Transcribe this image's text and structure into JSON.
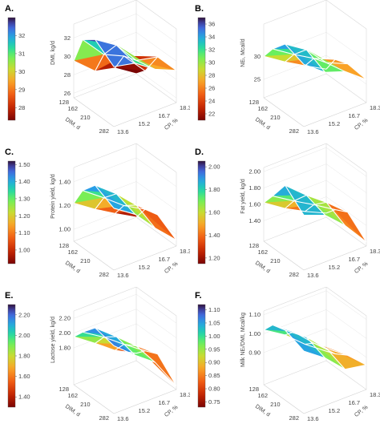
{
  "chart_data": [
    {
      "type": "surface",
      "panel_label": "A.",
      "zlabel": "DMI, kg/d",
      "xlabel": "DIM, d",
      "ylabel": "CP, %",
      "x": [
        128,
        162,
        210,
        282
      ],
      "y": [
        13.6,
        15.2,
        16.7,
        18.3
      ],
      "z": [
        [
          29.5,
          27.5,
          27.0,
          25.5
        ],
        [
          32.5,
          30.0,
          29.0,
          26.5
        ],
        [
          33.5,
          32.0,
          29.5,
          29.0
        ],
        [
          32.0,
          31.5,
          30.0,
          29.0
        ]
      ],
      "z_ticks": [
        26,
        28,
        30,
        32
      ],
      "colorbar": {
        "ticks": [
          28,
          29,
          30,
          31,
          32
        ],
        "min": 27.3,
        "max": 33
      }
    },
    {
      "type": "surface",
      "panel_label": "B.",
      "zlabel": "NEₗ, Mcal/d",
      "xlabel": "DIM, d",
      "ylabel": "CP, %",
      "x": [
        128,
        162,
        210,
        282
      ],
      "y": [
        13.6,
        15.2,
        16.7,
        18.3
      ],
      "z": [
        [
          30.0,
          27.0,
          24.5,
          22.0
        ],
        [
          33.0,
          30.0,
          27.5,
          25.5
        ],
        [
          36.0,
          33.0,
          28.5,
          26.5
        ],
        [
          34.5,
          31.0,
          29.5,
          26.0
        ]
      ],
      "z_ticks": [
        25,
        30
      ],
      "colorbar": {
        "ticks": [
          22,
          24,
          26,
          28,
          30,
          32,
          34,
          36
        ],
        "min": 21,
        "max": 37
      }
    },
    {
      "type": "surface",
      "panel_label": "C.",
      "zlabel": "Protein yield, kg/d",
      "xlabel": "DIM, d",
      "ylabel": "CP, %",
      "x": [
        128,
        162,
        210,
        282
      ],
      "y": [
        13.6,
        15.2,
        16.7,
        18.3
      ],
      "z": [
        [
          1.22,
          1.1,
          1.0,
          0.9
        ],
        [
          1.38,
          1.25,
          1.12,
          1.02
        ],
        [
          1.5,
          1.36,
          1.2,
          1.05
        ],
        [
          1.42,
          1.3,
          1.12,
          0.95
        ]
      ],
      "z_ticks": [
        1.0,
        1.2,
        1.4
      ],
      "z_tick_labels": [
        "1.00",
        "1.20",
        "1.40"
      ],
      "colorbar": {
        "ticks": [
          1.0,
          1.1,
          1.2,
          1.3,
          1.4,
          1.5
        ],
        "tick_labels": [
          "1.00",
          "1.10",
          "1.20",
          "1.30",
          "1.40",
          "1.50"
        ],
        "min": 0.92,
        "max": 1.52
      }
    },
    {
      "type": "surface",
      "panel_label": "D.",
      "zlabel": "Fat yield, kg/d",
      "xlabel": "DIM, d",
      "ylabel": "CP, %",
      "x": [
        128,
        162,
        210,
        282
      ],
      "y": [
        13.6,
        15.2,
        16.7,
        18.3
      ],
      "z": [
        [
          1.62,
          1.45,
          1.32,
          1.2
        ],
        [
          1.78,
          1.62,
          1.48,
          1.32
        ],
        [
          2.02,
          1.8,
          1.62,
          1.4
        ],
        [
          1.82,
          1.72,
          1.5,
          1.2
        ]
      ],
      "z_ticks": [
        1.4,
        1.6,
        1.8,
        2.0
      ],
      "z_tick_labels": [
        "1.40",
        "1.60",
        "1.80",
        "2.00"
      ],
      "colorbar": {
        "ticks": [
          1.2,
          1.4,
          1.6,
          1.8,
          2.0
        ],
        "tick_labels": [
          "1.20",
          "1.40",
          "1.60",
          "1.80",
          "2.00"
        ],
        "min": 1.15,
        "max": 2.05
      }
    },
    {
      "type": "surface",
      "panel_label": "E.",
      "zlabel": "Lactose yield, kg/d",
      "xlabel": "DIM, d",
      "ylabel": "CP, %",
      "x": [
        128,
        162,
        210,
        282
      ],
      "y": [
        13.6,
        15.2,
        16.7,
        18.3
      ],
      "z": [
        [
          1.95,
          1.75,
          1.55,
          1.4
        ],
        [
          2.1,
          1.92,
          1.72,
          1.52
        ],
        [
          2.28,
          2.05,
          1.82,
          1.6
        ],
        [
          2.22,
          1.98,
          1.78,
          1.35
        ]
      ],
      "z_ticks": [
        1.8,
        2.0,
        2.2
      ],
      "z_tick_labels": [
        "1.80",
        "2.00",
        "2.20"
      ],
      "colorbar": {
        "ticks": [
          1.4,
          1.6,
          1.8,
          2.0,
          2.2
        ],
        "tick_labels": [
          "1.40",
          "1.60",
          "1.80",
          "2.00",
          "2.20"
        ],
        "min": 1.3,
        "max": 2.3
      }
    },
    {
      "type": "surface",
      "panel_label": "F.",
      "zlabel": "Milk NEₗ/DMI, Mcal/kg",
      "xlabel": "DIM, d",
      "ylabel": "CP, %",
      "x": [
        128,
        162,
        210,
        282
      ],
      "y": [
        13.6,
        15.2,
        16.7,
        18.3
      ],
      "z": [
        [
          1.02,
          0.95,
          0.86,
          0.78
        ],
        [
          1.08,
          1.0,
          0.9,
          0.8
        ],
        [
          1.1,
          1.02,
          0.92,
          0.84
        ],
        [
          1.06,
          0.98,
          0.88,
          0.86
        ]
      ],
      "z_ticks": [
        0.9,
        1.0,
        1.1
      ],
      "z_tick_labels": [
        "0.90",
        "1.00",
        "1.10"
      ],
      "colorbar": {
        "ticks": [
          0.75,
          0.8,
          0.85,
          0.9,
          0.95,
          1.0,
          1.05,
          1.1
        ],
        "tick_labels": [
          "0.75",
          "0.80",
          "0.85",
          "0.90",
          "0.95",
          "1.00",
          "1.05",
          "1.10"
        ],
        "min": 0.73,
        "max": 1.12
      }
    }
  ]
}
